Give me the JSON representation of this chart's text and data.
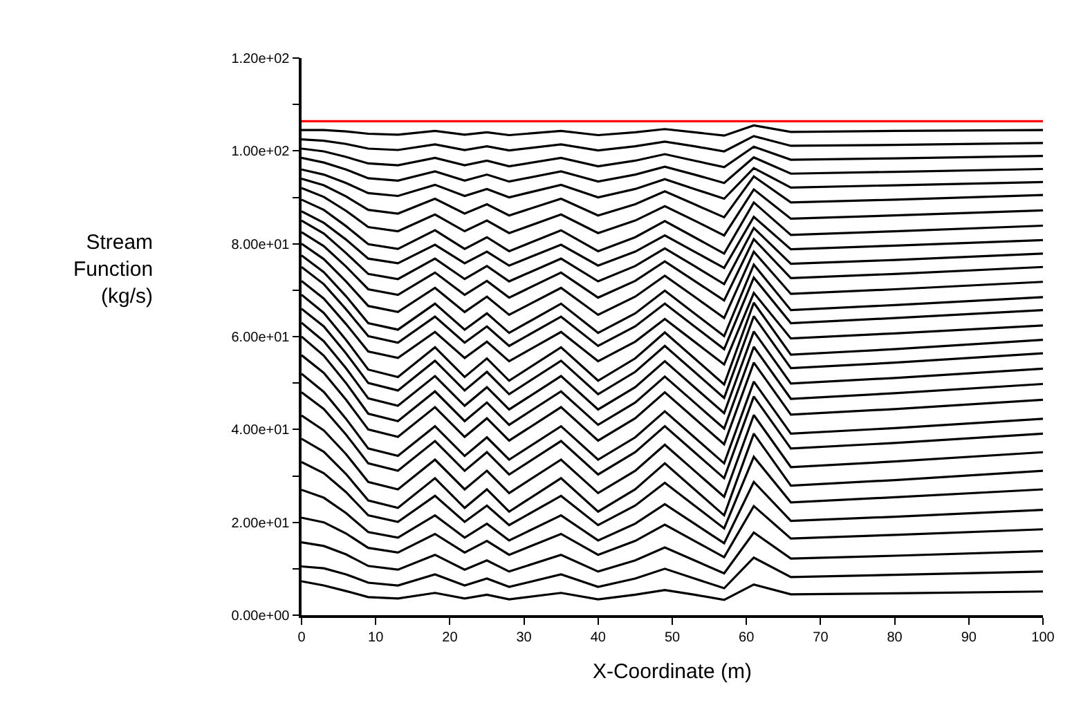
{
  "chart_data": {
    "type": "line",
    "xlabel": "X-Coordinate (m)",
    "ylabel": "Stream\nFunction\n(kg/s)",
    "x": [
      0,
      3,
      6,
      9,
      13,
      18,
      22,
      25,
      28,
      35,
      40,
      45,
      49,
      53,
      57,
      61,
      66,
      80,
      100
    ],
    "xlim": [
      0,
      100
    ],
    "xticks": [
      0,
      10,
      20,
      30,
      40,
      50,
      60,
      70,
      80,
      90,
      100
    ],
    "ylim": [
      0,
      120
    ],
    "yticks": [
      {
        "value": 0,
        "label": "0.00e+00"
      },
      {
        "value": 10,
        "label": null
      },
      {
        "value": 20,
        "label": "2.00e+01"
      },
      {
        "value": 30,
        "label": null
      },
      {
        "value": 40,
        "label": "4.00e+01"
      },
      {
        "value": 50,
        "label": null
      },
      {
        "value": 60,
        "label": "6.00e+01"
      },
      {
        "value": 70,
        "label": null
      },
      {
        "value": 80,
        "label": "8.00e+01"
      },
      {
        "value": 90,
        "label": null
      },
      {
        "value": 100,
        "label": "1.00e+02"
      },
      {
        "value": 110,
        "label": null
      },
      {
        "value": 120,
        "label": "1.20e+02"
      }
    ],
    "marker": "none",
    "line_style": "solid",
    "ref_lines": [
      {
        "axis": "y",
        "value": 106.4,
        "color": "#ff0000"
      }
    ],
    "series": [
      {
        "color": "#000000",
        "values": [
          7.3,
          6.4,
          5.2,
          3.9,
          3.6,
          4.8,
          3.6,
          4.4,
          3.4,
          4.8,
          3.4,
          4.4,
          5.4,
          4.4,
          3.3,
          6.6,
          4.5,
          4.7,
          5.1
        ]
      },
      {
        "color": "#000000",
        "values": [
          10.5,
          10.1,
          8.8,
          7.0,
          6.4,
          8.8,
          6.4,
          7.9,
          6.1,
          8.8,
          6.1,
          7.9,
          10.0,
          7.9,
          5.8,
          12.4,
          8.2,
          8.7,
          9.4
        ]
      },
      {
        "color": "#000000",
        "values": [
          15.7,
          14.9,
          13.1,
          10.6,
          9.8,
          13.0,
          9.8,
          11.8,
          9.4,
          13.0,
          9.4,
          11.8,
          14.6,
          11.8,
          9.0,
          17.8,
          12.2,
          12.8,
          13.8
        ]
      },
      {
        "color": "#000000",
        "values": [
          21.0,
          20.0,
          17.6,
          14.5,
          13.5,
          17.5,
          13.5,
          16.0,
          13.0,
          17.5,
          13.0,
          16.0,
          19.5,
          16.0,
          12.5,
          23.5,
          16.5,
          17.3,
          18.5
        ]
      },
      {
        "color": "#000000",
        "values": [
          27.0,
          25.3,
          22.0,
          17.9,
          16.7,
          21.5,
          16.7,
          19.7,
          16.1,
          21.5,
          16.1,
          19.7,
          23.9,
          19.7,
          15.5,
          28.7,
          20.3,
          21.2,
          22.7
        ]
      },
      {
        "color": "#000000",
        "values": [
          33.0,
          30.6,
          26.5,
          21.5,
          20.1,
          25.7,
          20.1,
          23.6,
          19.4,
          25.7,
          19.4,
          23.6,
          28.5,
          23.6,
          18.7,
          34.1,
          24.3,
          25.4,
          27.1
        ]
      },
      {
        "color": "#000000",
        "values": [
          38.0,
          35.2,
          30.4,
          24.7,
          23.1,
          29.5,
          23.1,
          27.1,
          22.3,
          29.5,
          22.3,
          27.1,
          32.7,
          27.1,
          21.5,
          39.1,
          27.9,
          29.1,
          31.1
        ]
      },
      {
        "color": "#000000",
        "values": [
          43.0,
          39.8,
          34.7,
          28.7,
          27.1,
          33.5,
          27.1,
          31.1,
          26.3,
          33.5,
          26.3,
          31.1,
          36.7,
          31.1,
          25.5,
          43.1,
          31.9,
          33.1,
          35.1
        ]
      },
      {
        "color": "#000000",
        "values": [
          48.0,
          44.4,
          38.9,
          32.7,
          31.1,
          37.5,
          31.1,
          35.1,
          30.3,
          37.5,
          30.3,
          35.1,
          40.7,
          35.1,
          29.5,
          47.1,
          35.9,
          37.1,
          39.1
        ]
      },
      {
        "color": "#000000",
        "values": [
          52.0,
          48.1,
          42.3,
          35.9,
          34.3,
          40.7,
          34.3,
          38.3,
          33.5,
          40.7,
          33.5,
          38.3,
          43.9,
          38.3,
          32.7,
          50.3,
          39.1,
          40.3,
          42.3
        ]
      },
      {
        "color": "#000000",
        "values": [
          56.0,
          52.2,
          46.4,
          40.0,
          38.4,
          44.8,
          38.4,
          42.4,
          37.6,
          44.8,
          37.6,
          42.4,
          48.0,
          42.4,
          36.8,
          54.4,
          43.2,
          44.4,
          46.4
        ]
      },
      {
        "color": "#000000",
        "values": [
          60.0,
          55.9,
          50.0,
          43.4,
          41.8,
          48.2,
          41.8,
          45.8,
          41.0,
          48.2,
          41.0,
          45.8,
          51.4,
          45.8,
          40.2,
          57.8,
          46.6,
          47.8,
          49.8
        ]
      },
      {
        "color": "#000000",
        "values": [
          63.0,
          59.0,
          53.2,
          46.7,
          45.1,
          51.5,
          45.1,
          49.1,
          44.3,
          51.5,
          44.3,
          49.1,
          54.7,
          49.1,
          43.5,
          61.1,
          49.9,
          51.1,
          53.1
        ]
      },
      {
        "color": "#000000",
        "values": [
          66.0,
          62.2,
          56.4,
          50.0,
          48.4,
          54.8,
          48.4,
          52.4,
          47.6,
          54.8,
          47.6,
          52.4,
          58.0,
          52.4,
          46.8,
          64.4,
          53.2,
          54.4,
          56.4
        ]
      },
      {
        "color": "#000000",
        "values": [
          69.0,
          65.1,
          59.3,
          52.9,
          51.3,
          57.7,
          51.3,
          55.3,
          50.5,
          57.7,
          50.5,
          55.3,
          60.9,
          55.3,
          49.7,
          67.3,
          56.1,
          57.3,
          59.3
        ]
      },
      {
        "color": "#000000",
        "values": [
          72.0,
          68.2,
          62.7,
          56.8,
          55.4,
          61.0,
          55.4,
          58.9,
          54.7,
          61.0,
          54.7,
          58.9,
          63.8,
          58.9,
          54.0,
          69.4,
          59.6,
          60.7,
          62.4
        ]
      },
      {
        "color": "#000000",
        "values": [
          75.0,
          71.3,
          65.9,
          60.1,
          58.7,
          64.3,
          58.7,
          62.2,
          58.0,
          64.3,
          58.0,
          62.2,
          67.1,
          62.2,
          57.3,
          72.7,
          62.9,
          64.0,
          65.7
        ]
      },
      {
        "color": "#000000",
        "values": [
          77.5,
          73.9,
          68.7,
          62.9,
          61.5,
          67.1,
          61.5,
          65.0,
          60.8,
          67.1,
          60.8,
          65.0,
          69.9,
          65.0,
          60.1,
          75.5,
          65.7,
          66.8,
          68.5
        ]
      },
      {
        "color": "#000000",
        "values": [
          80.0,
          76.7,
          71.9,
          66.6,
          65.3,
          70.5,
          65.3,
          68.6,
          64.7,
          70.5,
          64.7,
          68.6,
          73.1,
          68.6,
          64.0,
          78.3,
          69.2,
          70.2,
          71.8
        ]
      },
      {
        "color": "#000000",
        "values": [
          82.5,
          79.5,
          75.1,
          70.2,
          69.0,
          73.8,
          69.0,
          72.0,
          68.4,
          73.8,
          68.4,
          72.0,
          76.2,
          72.0,
          67.8,
          81.0,
          72.6,
          73.5,
          75.0
        ]
      },
      {
        "color": "#000000",
        "values": [
          85.0,
          82.2,
          78.0,
          73.5,
          72.4,
          76.8,
          72.4,
          75.2,
          71.9,
          76.8,
          71.9,
          75.2,
          79.0,
          75.2,
          71.3,
          83.4,
          75.7,
          76.5,
          77.9
        ]
      },
      {
        "color": "#000000",
        "values": [
          87.0,
          84.5,
          80.9,
          76.8,
          75.8,
          79.8,
          75.8,
          78.3,
          75.3,
          79.8,
          75.3,
          78.3,
          81.8,
          78.3,
          74.8,
          85.8,
          78.8,
          79.6,
          80.8
        ]
      },
      {
        "color": "#000000",
        "values": [
          89.5,
          87.3,
          83.8,
          79.9,
          78.9,
          82.9,
          78.9,
          81.4,
          78.4,
          82.9,
          78.4,
          81.4,
          84.9,
          81.4,
          77.9,
          88.9,
          81.9,
          82.7,
          83.9
        ]
      },
      {
        "color": "#000000",
        "values": [
          92.0,
          90.1,
          87.1,
          83.6,
          82.7,
          86.3,
          82.7,
          85.0,
          82.3,
          86.3,
          82.3,
          85.0,
          88.1,
          85.0,
          81.8,
          91.7,
          85.4,
          86.1,
          87.2
        ]
      },
      {
        "color": "#000000",
        "values": [
          94.0,
          92.6,
          90.2,
          87.3,
          86.5,
          89.7,
          86.5,
          88.5,
          86.1,
          89.7,
          86.1,
          88.5,
          91.3,
          88.5,
          85.7,
          94.5,
          88.9,
          89.5,
          90.5
        ]
      },
      {
        "color": "#000000",
        "values": [
          96.0,
          94.9,
          93.1,
          90.9,
          90.3,
          92.7,
          90.3,
          91.8,
          90.0,
          92.7,
          90.0,
          91.8,
          93.9,
          91.8,
          89.7,
          96.3,
          92.1,
          92.6,
          93.3
        ]
      },
      {
        "color": "#000000",
        "values": [
          98.5,
          97.5,
          96.0,
          94.1,
          93.6,
          95.6,
          93.6,
          94.9,
          93.4,
          95.6,
          93.4,
          94.9,
          96.6,
          94.9,
          93.1,
          98.6,
          95.1,
          95.5,
          96.1
        ]
      },
      {
        "color": "#000000",
        "values": [
          100.5,
          99.9,
          98.7,
          97.3,
          96.9,
          98.5,
          96.9,
          97.9,
          96.7,
          98.5,
          96.7,
          97.9,
          99.3,
          97.9,
          96.5,
          100.9,
          98.1,
          98.4,
          98.9
        ]
      },
      {
        "color": "#000000",
        "values": [
          102.5,
          102.2,
          101.5,
          100.5,
          100.2,
          101.4,
          100.2,
          101.0,
          100.1,
          101.4,
          100.1,
          101.0,
          102.0,
          101.0,
          99.9,
          103.2,
          101.1,
          101.3,
          101.7
        ]
      },
      {
        "color": "#000000",
        "values": [
          104.5,
          104.5,
          104.2,
          103.7,
          103.5,
          104.3,
          103.5,
          104.0,
          103.4,
          104.3,
          103.4,
          104.0,
          104.7,
          104.0,
          103.3,
          105.5,
          104.1,
          104.3,
          104.5
        ]
      }
    ]
  }
}
